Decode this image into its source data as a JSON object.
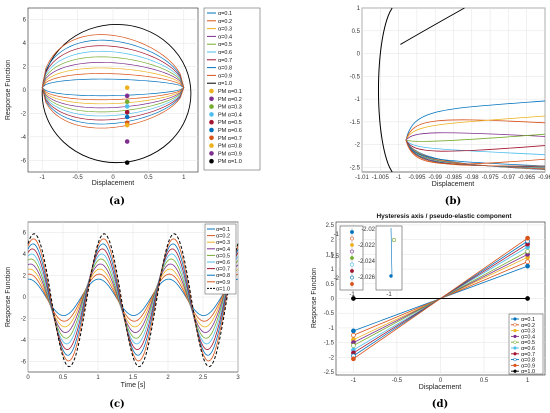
{
  "chart_data": [
    {
      "type": "line",
      "panel": "a",
      "caption": "(a)",
      "xlabel": "Displacement",
      "ylabel": "Response Function",
      "xlim": [
        -1.2,
        1.2
      ],
      "ylim": [
        -7,
        7
      ],
      "xticks": [
        "-1",
        "-0.5",
        "0",
        "0.5",
        "1"
      ],
      "yticks": [
        "6",
        "4",
        "2",
        "0",
        "-2",
        "-4",
        "-6"
      ],
      "grid": true,
      "legend_position": "right",
      "series": [
        {
          "name": "α=0.1",
          "color": "#0072BD",
          "alpha": 0.1
        },
        {
          "name": "α=0.2",
          "color": "#D95319",
          "alpha": 0.2
        },
        {
          "name": "α=0.3",
          "color": "#EDB120",
          "alpha": 0.3
        },
        {
          "name": "α=0.4",
          "color": "#7E2F8E",
          "alpha": 0.4
        },
        {
          "name": "α=0.5",
          "color": "#77AC30",
          "alpha": 0.5
        },
        {
          "name": "α=0.6",
          "color": "#4DBEEE",
          "alpha": 0.6
        },
        {
          "name": "α=0.7",
          "color": "#A2142F",
          "alpha": 0.7
        },
        {
          "name": "α=0.8",
          "color": "#0072BD",
          "alpha": 0.8
        },
        {
          "name": "α=0.9",
          "color": "#D95319",
          "alpha": 0.9
        },
        {
          "name": "α=1.0",
          "color": "#000000",
          "alpha": 1.0
        }
      ],
      "pm_points": [
        {
          "name": "PM α=0.1",
          "color": "#EDB120",
          "x": 0.2,
          "y": 0.2
        },
        {
          "name": "PM α=0.2",
          "color": "#7E2F8E",
          "x": 0.2,
          "y": -0.5
        },
        {
          "name": "PM α=0.3",
          "color": "#77AC30",
          "x": 0.2,
          "y": -1.0
        },
        {
          "name": "PM α=0.4",
          "color": "#4DBEEE",
          "x": 0.2,
          "y": -1.4
        },
        {
          "name": "PM α=0.5",
          "color": "#A2142F",
          "x": 0.2,
          "y": -1.9
        },
        {
          "name": "PM α=0.6",
          "color": "#0072BD",
          "x": 0.2,
          "y": -2.3
        },
        {
          "name": "PM α=0.7",
          "color": "#D95319",
          "x": 0.2,
          "y": -2.8
        },
        {
          "name": "PM α=0.8",
          "color": "#EDB120",
          "x": 0.2,
          "y": -3.0
        },
        {
          "name": "PM α=0.9",
          "color": "#7E2F8E",
          "x": 0.2,
          "y": -4.4
        },
        {
          "name": "PM α=1.0",
          "color": "#000000",
          "x": 0.2,
          "y": -6.2
        }
      ]
    },
    {
      "type": "line",
      "panel": "b",
      "caption": "(b)",
      "xlabel": "Displacement",
      "xlim": [
        -1.01,
        -0.96
      ],
      "ylim": [
        -2.6,
        1.0
      ],
      "xticks": [
        "-1.01",
        "-1.005",
        "-1",
        "-0.995",
        "-0.99",
        "-0.985",
        "-0.98",
        "-0.975",
        "-0.97",
        "-0.965",
        "-0.96"
      ],
      "yticks": [
        "1",
        "0.5",
        "0",
        "-0.5",
        "-1",
        "-1.5",
        "-2",
        "-2.5"
      ],
      "grid": true
    },
    {
      "type": "line",
      "panel": "c",
      "caption": "(c)",
      "xlabel": "Time [s]",
      "ylabel": "Response Function",
      "xlim": [
        0,
        3
      ],
      "ylim": [
        -7,
        7
      ],
      "xticks": [
        "0",
        "0.5",
        "1",
        "1.5",
        "2",
        "2.5",
        "3"
      ],
      "yticks": [
        "6",
        "4",
        "2",
        "0",
        "-2",
        "-4",
        "-6"
      ],
      "grid": true,
      "legend_position": "top-right",
      "legend": [
        "α=0.1",
        "α=0.2",
        "α=0.3",
        "α=0.4",
        "α=0.5",
        "α=0.6",
        "α=0.7",
        "α=0.8",
        "α=0.9",
        "α=1.0"
      ]
    },
    {
      "type": "line",
      "panel": "d",
      "caption": "(d)",
      "title": "Hysteresis axis / pseudo-elastic component",
      "xlabel": "Displacement",
      "ylabel": "Response Function",
      "xlim": [
        -1.2,
        1.2
      ],
      "ylim": [
        -2.6,
        2.6
      ],
      "xticks": [
        "-1",
        "-0.5",
        "0",
        "0.5",
        "1"
      ],
      "yticks": [
        "2.5",
        "2",
        "1.5",
        "1",
        "0.5",
        "0",
        "-0.5",
        "-1",
        "-1.5",
        "-2",
        "-2.5"
      ],
      "grid": true,
      "legend_position": "bottom-right",
      "legend": [
        "α=0.1",
        "α=0.2",
        "α=0.3",
        "α=0.4",
        "α=0.5",
        "α=0.6",
        "α=0.7",
        "α=0.8",
        "α=0.9",
        "α=1.0"
      ],
      "endpoints": [
        1.1,
        1.25,
        1.4,
        1.5,
        1.6,
        1.75,
        1.85,
        1.95,
        2.05,
        0.0
      ],
      "inset1_yticks": [
        "-1",
        "-1.5",
        "-2"
      ],
      "inset1_xtick": "-1",
      "inset2_yticks": [
        "-2.02",
        "-2.022",
        "-2.024",
        "-2.026"
      ],
      "inset2_xtick": "-1"
    }
  ]
}
